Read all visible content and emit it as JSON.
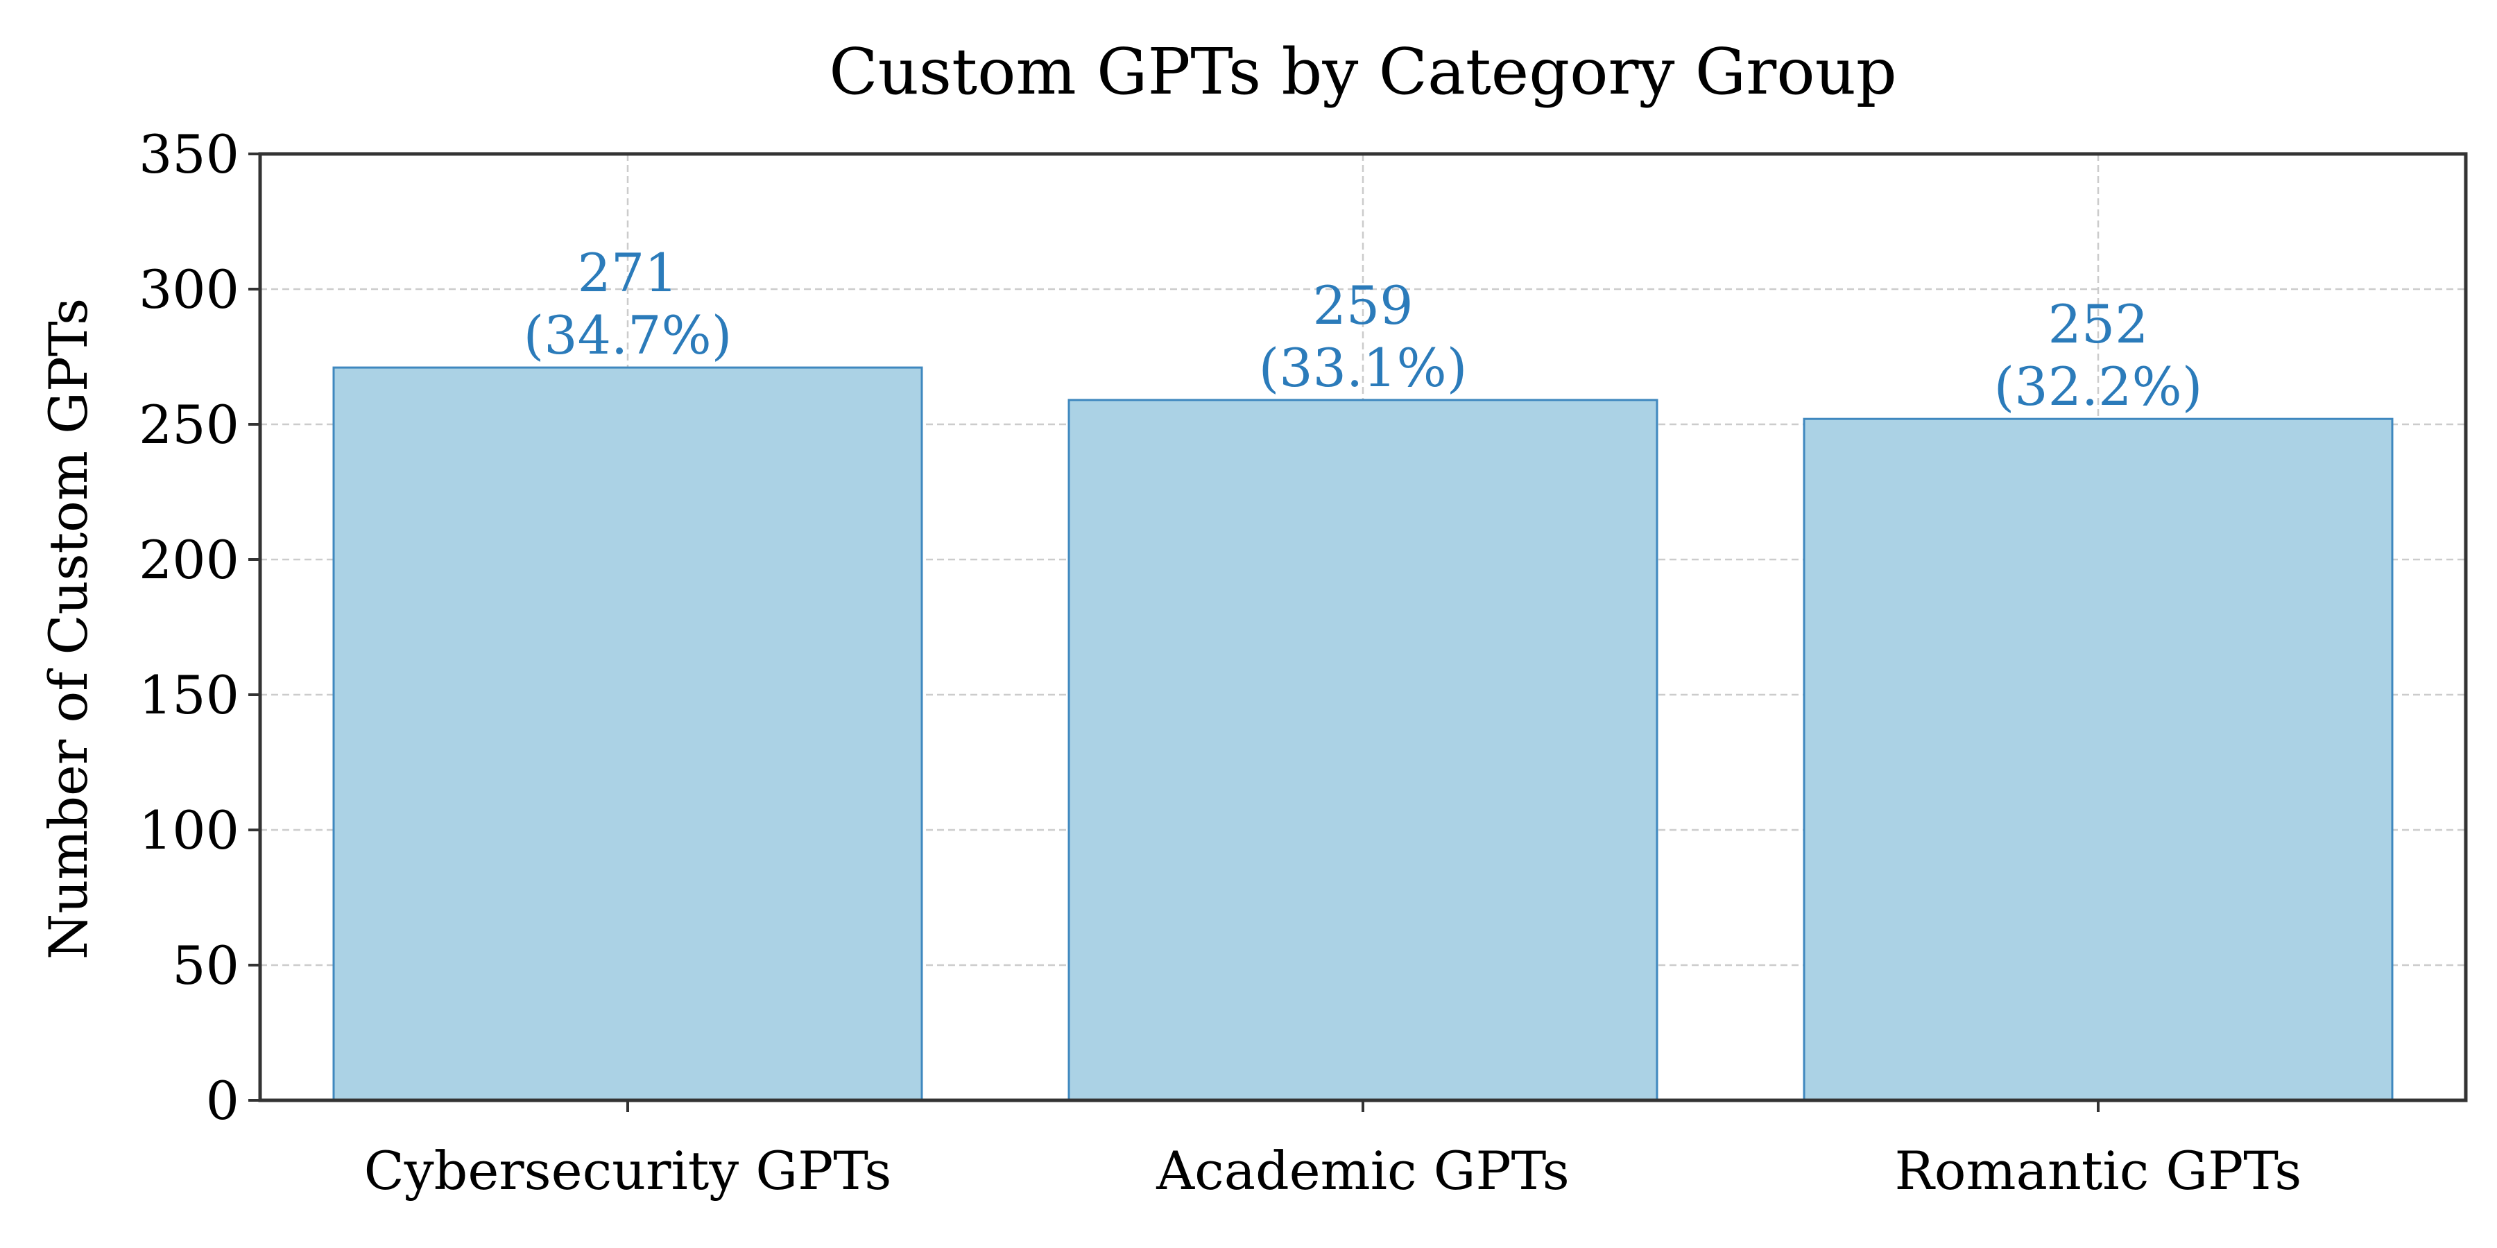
{
  "chart_data": {
    "type": "bar",
    "title": "Custom GPTs by Category Group",
    "xlabel": "",
    "ylabel": "Number of Custom GPTs",
    "categories": [
      "Cybersecurity GPTs",
      "Academic GPTs",
      "Romantic GPTs"
    ],
    "values": [
      271,
      259,
      252
    ],
    "value_labels": [
      "271",
      "259",
      "252"
    ],
    "percent_labels": [
      "(34.7%)",
      "(33.1%)",
      "(32.2%)"
    ],
    "ylim": [
      0,
      350
    ],
    "yticks": [
      0,
      50,
      100,
      150,
      200,
      250,
      300,
      350
    ],
    "ytick_labels": [
      "0",
      "50",
      "100",
      "150",
      "200",
      "250",
      "300",
      "350"
    ],
    "grid": true,
    "legend": "none",
    "colors": {
      "bar_fill": "#abd2e5",
      "bar_edge": "#3f88bf",
      "label_text": "#2b7bba",
      "grid": "#cccccc",
      "axis": "#333333"
    }
  }
}
